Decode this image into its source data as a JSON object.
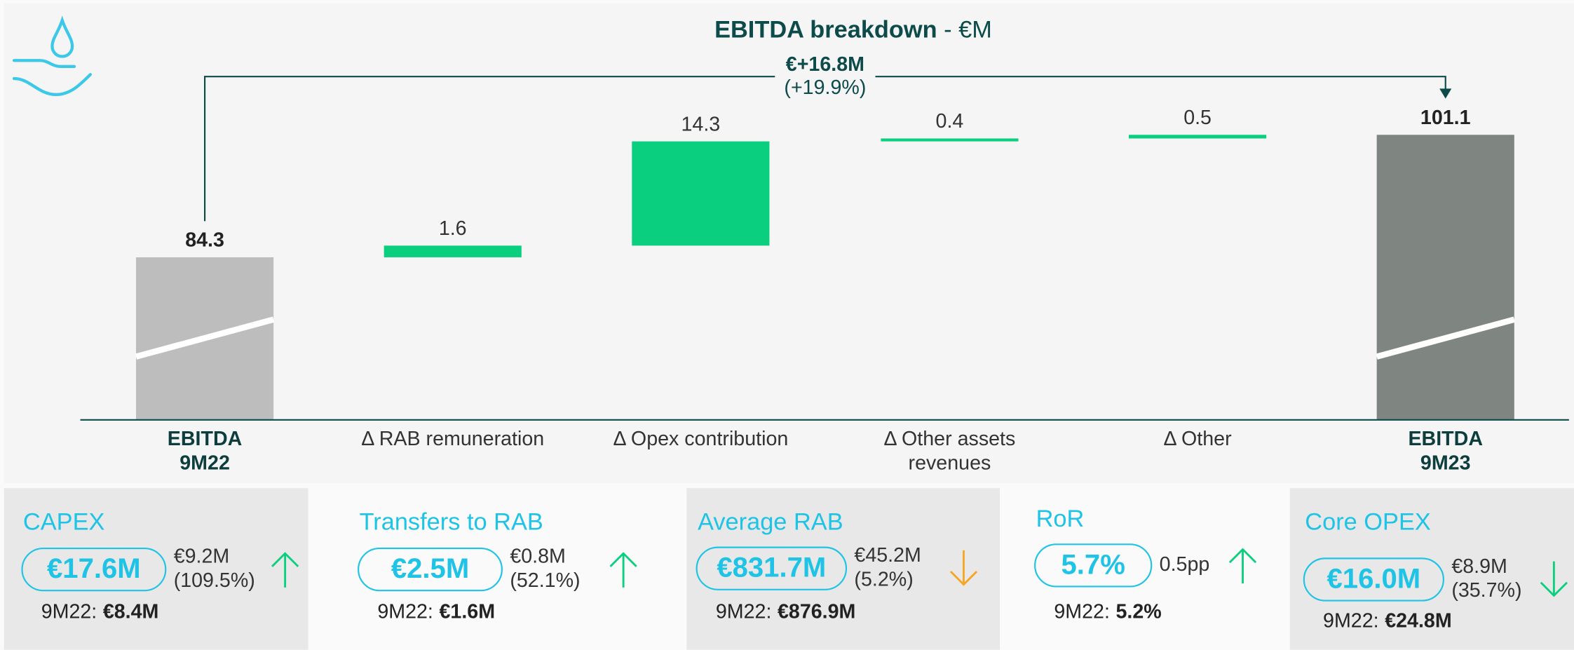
{
  "chart_data": {
    "type": "waterfall",
    "title": "EBITDA breakdown",
    "title_suffix": " - €M",
    "categories": [
      [
        "EBITDA",
        "9M22"
      ],
      [
        "Δ RAB remuneration"
      ],
      [
        "Δ Opex contribution"
      ],
      [
        "Δ Other assets",
        "revenues"
      ],
      [
        "Δ Other"
      ],
      [
        "EBITDA",
        "9M23"
      ]
    ],
    "values": [
      84.3,
      1.6,
      14.3,
      0.4,
      0.5,
      101.1
    ],
    "measures": [
      "total",
      "delta",
      "delta",
      "delta",
      "delta",
      "total"
    ],
    "colors": [
      "#bdbdbd",
      "#0acf7f",
      "#0acf7f",
      "#0acf7f",
      "#0acf7f",
      "#7f8580"
    ],
    "ylim": [
      62,
      104
    ],
    "bridge": {
      "label": "€+16.8M",
      "sublabel": "(+19.9%)"
    }
  },
  "cards": [
    {
      "title": "CAPEX",
      "value": "€17.6M",
      "change": [
        "€9.2M",
        "(109.5%)"
      ],
      "arrow": "up",
      "arrow_color": "#0acf7f",
      "prior_label": "9M22:",
      "prior_value": "€8.4M",
      "shaded": true
    },
    {
      "title": "Transfers to RAB",
      "value": "€2.5M",
      "change": [
        "€0.8M",
        "(52.1%)"
      ],
      "arrow": "up",
      "arrow_color": "#0acf7f",
      "prior_label": "9M22:",
      "prior_value": "€1.6M",
      "shaded": false
    },
    {
      "title": "Average RAB",
      "value": "€831.7M",
      "change": [
        "€45.2M",
        "(5.2%)"
      ],
      "arrow": "down",
      "arrow_color": "#f5a623",
      "prior_label": "9M22:",
      "prior_value": "€876.9M",
      "shaded": true
    },
    {
      "title": "RoR",
      "value": "5.7%",
      "change": [
        "0.5pp"
      ],
      "arrow": "up",
      "arrow_color": "#0acf7f",
      "prior_label": "9M22:",
      "prior_value": "5.2%",
      "shaded": false
    },
    {
      "title": "Core OPEX",
      "value": "€16.0M",
      "change": [
        "€8.9M",
        "(35.7%)"
      ],
      "arrow": "down",
      "arrow_color": "#0acf7f",
      "prior_label": "9M22:",
      "prior_value": "€24.8M",
      "shaded": true
    }
  ]
}
